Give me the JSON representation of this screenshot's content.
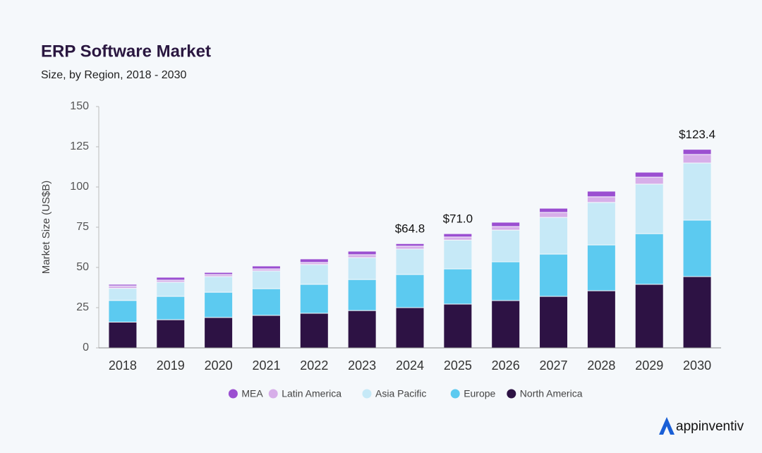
{
  "chart_data": {
    "type": "stacked_bar",
    "title": "ERP Software Market",
    "subtitle": "Size, by Region, 2018 - 2030",
    "y_label": "Market Size (US$B)",
    "categories": [
      "2018",
      "2019",
      "2020",
      "2021",
      "2022",
      "2023",
      "2024",
      "2025",
      "2026",
      "2027",
      "2028",
      "2029",
      "2030"
    ],
    "series": [
      {
        "name": "MEA",
        "color": "#9b4fd1",
        "values": [
          1.0,
          1.8,
          1.3,
          1.8,
          2.2,
          2.2,
          1.6,
          2.1,
          2.7,
          2.6,
          3.5,
          3.1,
          3.2
        ]
      },
      {
        "name": "Latin America",
        "color": "#d7aee9",
        "values": [
          1.5,
          1.3,
          1.3,
          1.3,
          1.3,
          1.8,
          1.8,
          1.9,
          2.2,
          3.1,
          3.5,
          4.3,
          5.3
        ]
      },
      {
        "name": "Asia Pacific",
        "color": "#c6e9f7",
        "values": [
          7.5,
          8.8,
          9.7,
          11.0,
          12.3,
          13.6,
          15.8,
          17.9,
          19.7,
          22.8,
          26.4,
          30.8,
          35.5
        ]
      },
      {
        "name": "Europe",
        "color": "#5ccaf0",
        "values": [
          13.5,
          14.5,
          15.7,
          16.6,
          18.0,
          19.3,
          20.6,
          21.9,
          24.1,
          26.3,
          28.5,
          31.5,
          35.1
        ]
      },
      {
        "name": "North America",
        "color": "#2d1244",
        "values": [
          16.0,
          17.5,
          18.9,
          20.2,
          21.5,
          23.2,
          25.0,
          27.2,
          29.4,
          32.0,
          35.5,
          39.5,
          44.3
        ]
      }
    ],
    "totals": [
      null,
      null,
      null,
      null,
      null,
      null,
      64.8,
      71.0,
      null,
      null,
      null,
      null,
      123.4
    ],
    "total_labels": [
      null,
      null,
      null,
      null,
      null,
      null,
      "$64.8",
      "$71.0",
      null,
      null,
      null,
      null,
      "$123.4"
    ],
    "ylim": [
      0,
      150
    ],
    "yticks": [
      0,
      25,
      50,
      75,
      100,
      125,
      150
    ],
    "legend": "bottom",
    "brand": "appinventiv"
  }
}
